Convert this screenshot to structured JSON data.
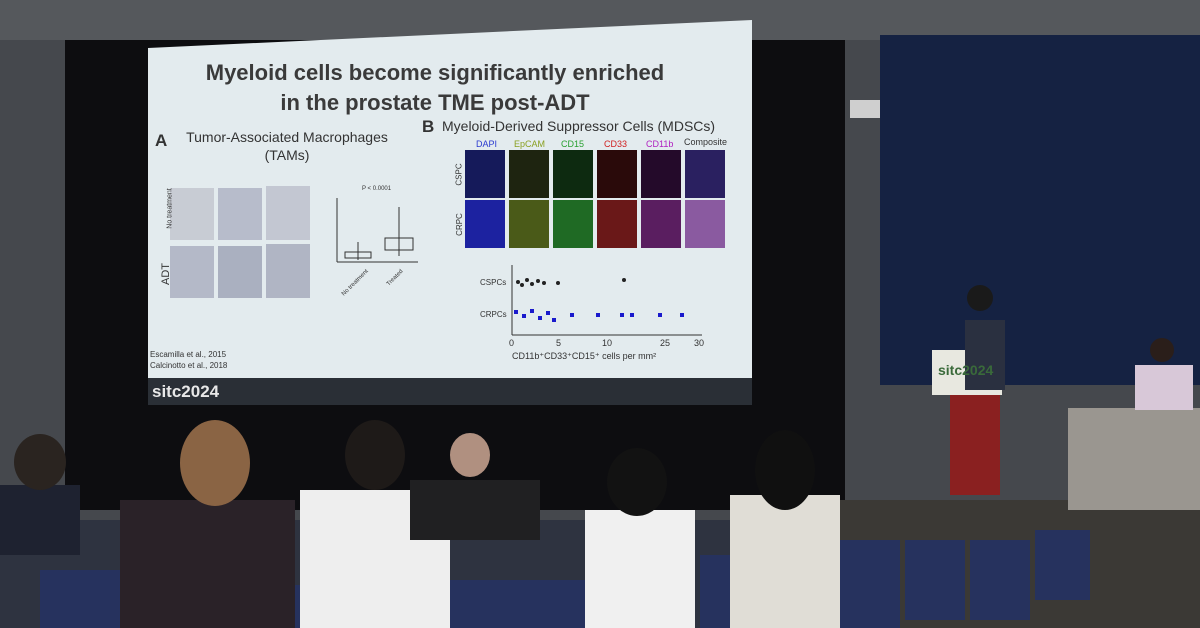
{
  "slide": {
    "title": "Myeloid cells become significantly enriched in the prostate TME post-ADT",
    "panel_a": {
      "letter": "A",
      "heading": "Tumor-Associated Macrophages (TAMs)",
      "row_labels": [
        "No treatment",
        "ADT"
      ],
      "p_value": "P < 0.0001",
      "box_labels": [
        "No treatment",
        "Treated"
      ]
    },
    "panel_b": {
      "letter": "B",
      "heading": "Myeloid-Derived Suppressor Cells (MDSCs)",
      "channels": [
        "DAPI",
        "EpCAM",
        "CD15",
        "CD33",
        "CD11b",
        "Composite"
      ],
      "row_labels": [
        "CSPC",
        "CRPC"
      ],
      "groups": [
        "CSPCs",
        "CRPCs"
      ],
      "xticks": [
        "0",
        "5",
        "10",
        "25",
        "30"
      ],
      "xlabel": "CD11b⁺CD33⁺CD15⁺ cells per mm²"
    },
    "references": [
      "Escamilla et al., 2015",
      "Calcinotto et al., 2018"
    ],
    "logo": "sitc2024"
  },
  "podium": {
    "logo": "sitc2024"
  }
}
